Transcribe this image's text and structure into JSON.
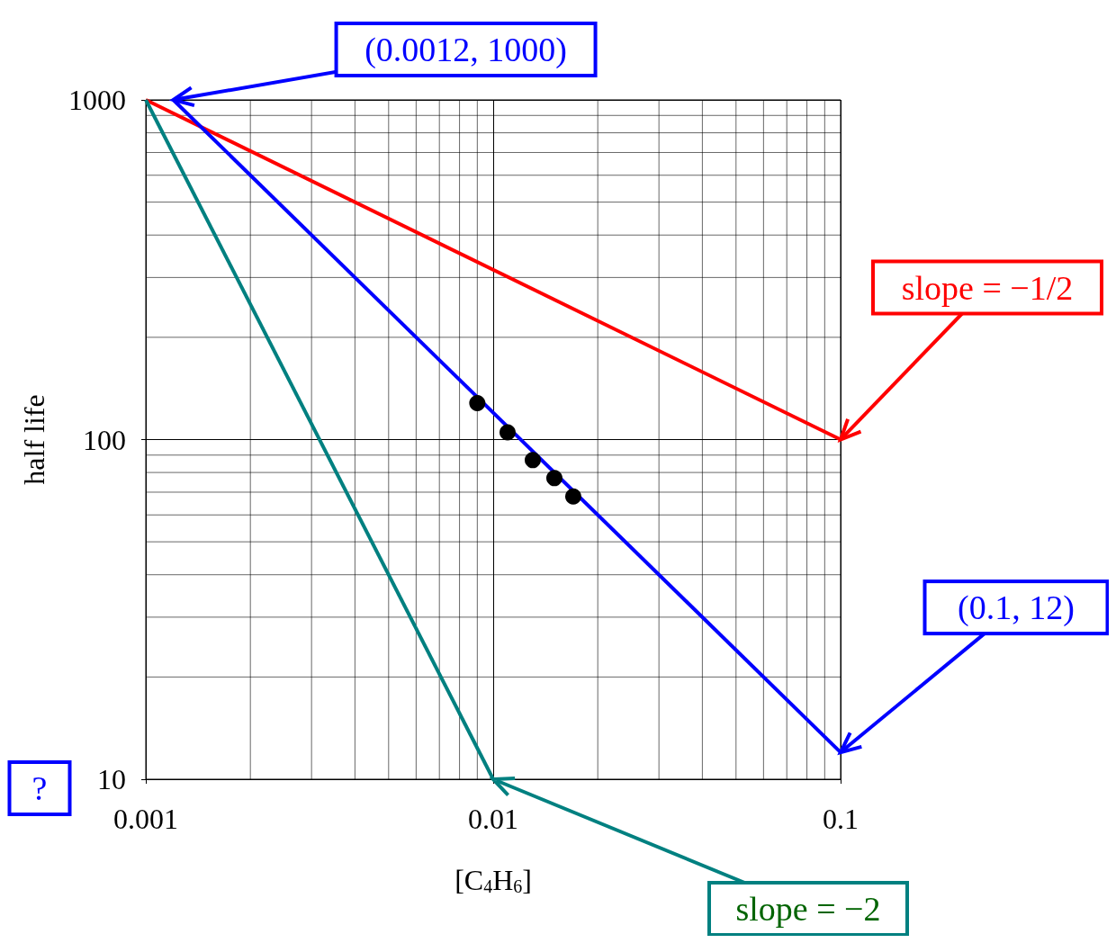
{
  "chart_data": {
    "type": "line",
    "xlabel": "[C$_{4}$H$_{6}$]",
    "ylabel": "half life",
    "log": "xy",
    "grid": true,
    "xlim": [
      0.001,
      0.1
    ],
    "xticks": [
      0.001,
      0.01,
      0.1
    ],
    "ylim": [
      10,
      1000
    ],
    "yticks": [
      10,
      100,
      1000
    ],
    "series": [
      {
        "type": "line",
        "color": "#ff0000",
        "x": [
          0.001,
          0.1
        ],
        "values": [
          1000,
          100
        ]
      },
      {
        "type": "line",
        "color": "#0000ff",
        "x": [
          0.0012,
          0.1
        ],
        "values": [
          1000,
          12
        ]
      },
      {
        "type": "line",
        "color": "#008080",
        "x": [
          0.001,
          0.01
        ],
        "values": [
          1000,
          10
        ]
      },
      {
        "type": "scatter",
        "color": "#000000",
        "marker": "circle",
        "x": [
          0.009,
          0.011,
          0.013,
          0.015,
          0.017
        ],
        "values": [
          128,
          105,
          87,
          77,
          68
        ]
      }
    ],
    "annotations": [
      {
        "text": "(0.0012, 1000)",
        "x": 0.0012,
        "y": 1000
      },
      {
        "text": "slope = −1/2",
        "x": 0.1,
        "y": 100
      },
      {
        "text": "(0.1, 12)",
        "x": 0.1,
        "y": 12
      },
      {
        "text": "slope = −2",
        "x": 0.01,
        "y": 10
      },
      "?"
    ]
  }
}
